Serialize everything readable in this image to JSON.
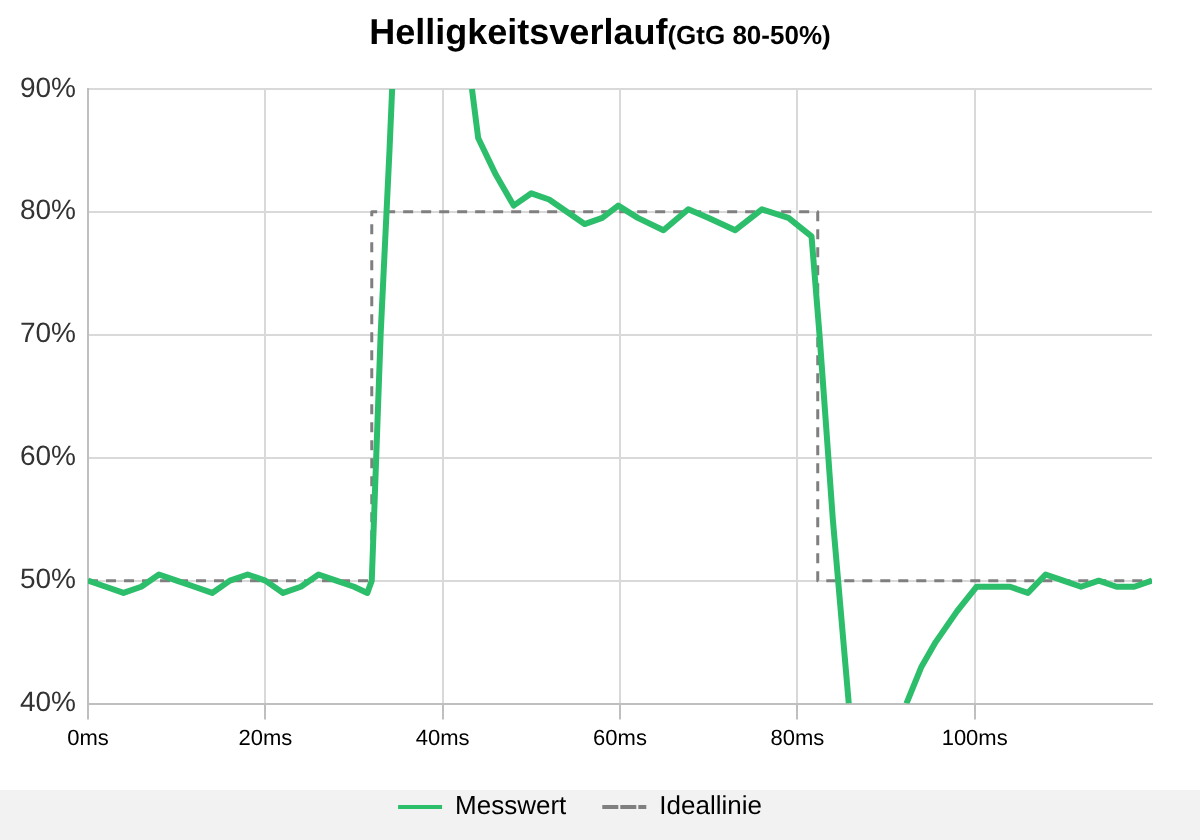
{
  "chart_data": {
    "type": "line",
    "title": "Helligkeitsverlauf",
    "subtitle": "(GtG 80-50%)",
    "series": [
      {
        "name": "Messwert",
        "color": "#2dbe6c",
        "line_style": "solid",
        "x": [
          0,
          2,
          4,
          6,
          8,
          10,
          12,
          14,
          16,
          18,
          20,
          22,
          24,
          26,
          28,
          30,
          31.5,
          32,
          33,
          34,
          34.3,
          38.8,
          43.3,
          44,
          46,
          48,
          50,
          52,
          54,
          56,
          58,
          59.8,
          62,
          64.9,
          67.7,
          70,
          73,
          76,
          79,
          81.6,
          82.5,
          84,
          85.8,
          89,
          92.3,
          94,
          95.6,
          98,
          100.2,
          102,
          104,
          106,
          108,
          110,
          112,
          114,
          116,
          118,
          120
        ],
        "values": [
          50,
          49.5,
          49,
          49.5,
          50.5,
          50,
          49.5,
          49,
          50,
          50.5,
          50,
          49,
          49.5,
          50.5,
          50,
          49.5,
          49,
          50,
          70,
          85,
          90,
          null,
          90,
          86,
          83,
          80.5,
          81.5,
          81,
          80,
          79,
          79.5,
          80.5,
          79.5,
          78.5,
          80.2,
          79.5,
          78.5,
          80.2,
          79.5,
          78,
          70,
          55,
          40,
          null,
          40,
          43,
          45,
          47.5,
          49.5,
          49.5,
          49.5,
          49,
          50.5,
          50,
          49.5,
          50,
          49.5,
          49.5,
          50
        ]
      },
      {
        "name": "Ideallinie",
        "color": "#7f7f7f",
        "line_style": "dashed",
        "x": [
          0,
          32,
          32,
          82.3,
          82.3,
          120
        ],
        "values": [
          50,
          50,
          80,
          80,
          50,
          50
        ]
      }
    ],
    "xlim": [
      0,
      120
    ],
    "xticks": [
      {
        "value": 0,
        "label": "0ms"
      },
      {
        "value": 20,
        "label": "20ms"
      },
      {
        "value": 40,
        "label": "40ms"
      },
      {
        "value": 60,
        "label": "60ms"
      },
      {
        "value": 80,
        "label": "80ms"
      },
      {
        "value": 100,
        "label": "100ms"
      }
    ],
    "ylim": [
      40,
      90
    ],
    "yticks": [
      {
        "value": 40,
        "label": "40%"
      },
      {
        "value": 50,
        "label": "50%"
      },
      {
        "value": 60,
        "label": "60%"
      },
      {
        "value": 70,
        "label": "70%"
      },
      {
        "value": 80,
        "label": "80%"
      },
      {
        "value": 90,
        "label": "90%"
      }
    ],
    "grid": true,
    "legend": "bottom",
    "marker": "none"
  }
}
